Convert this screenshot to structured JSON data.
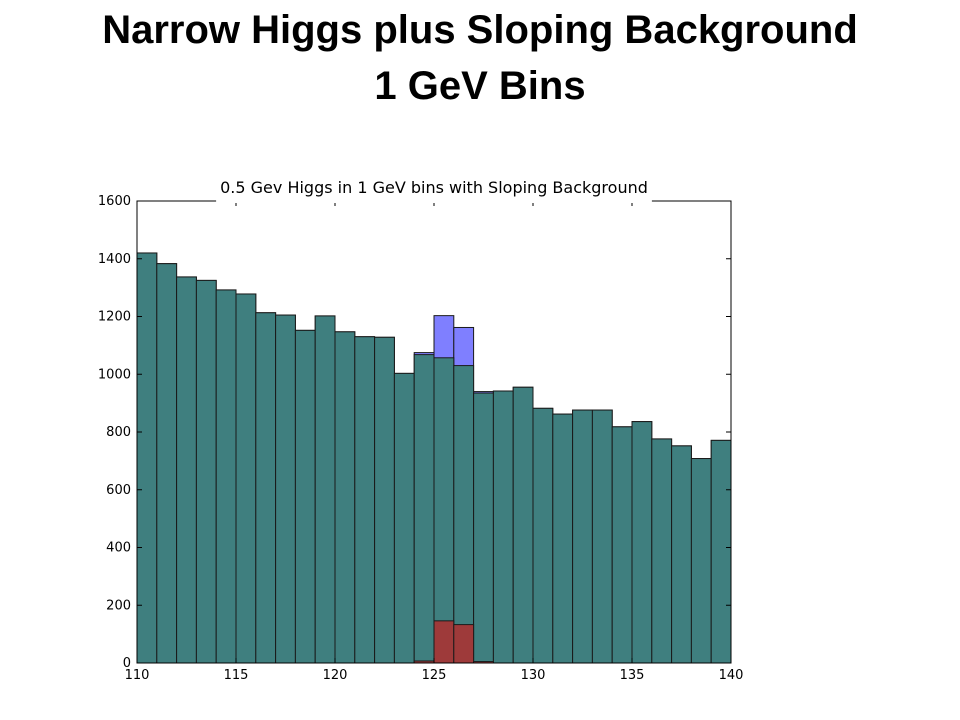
{
  "slide": {
    "title_line1": "Narrow Higgs plus Sloping Background",
    "title_line2": "1 GeV Bins"
  },
  "chart_data": {
    "type": "bar",
    "title": "0.5 Gev Higgs in 1 GeV bins with Sloping Background",
    "xlabel": "",
    "ylabel": "",
    "xlim": [
      110,
      140
    ],
    "ylim": [
      0,
      1600
    ],
    "grid": false,
    "bin_width": 1,
    "x_bin_starts": [
      110,
      111,
      112,
      113,
      114,
      115,
      116,
      117,
      118,
      119,
      120,
      121,
      122,
      123,
      124,
      125,
      126,
      127,
      128,
      129,
      130,
      131,
      132,
      133,
      134,
      135,
      136,
      137,
      138,
      139
    ],
    "x_ticks": [
      110,
      115,
      120,
      125,
      130,
      135,
      140
    ],
    "y_ticks": [
      0,
      200,
      400,
      600,
      800,
      1000,
      1200,
      1400,
      1600
    ],
    "series": [
      {
        "values": [
          1420,
          1383,
          1337,
          1325,
          1292,
          1278,
          1213,
          1205,
          1152,
          1202,
          1147,
          1130,
          1128,
          1003,
          1075,
          1203,
          1162,
          940,
          942,
          955,
          882,
          862,
          876,
          876,
          818,
          836,
          776,
          752,
          708,
          771
        ],
        "color": "#7f7fff"
      },
      {
        "values": [
          1420,
          1383,
          1337,
          1325,
          1292,
          1278,
          1213,
          1205,
          1152,
          1202,
          1147,
          1130,
          1128,
          1003,
          1068,
          1057,
          1030,
          935,
          942,
          955,
          882,
          862,
          876,
          876,
          818,
          836,
          776,
          752,
          708,
          771
        ],
        "color": "#3f7f7f"
      },
      {
        "values": [
          0,
          0,
          0,
          0,
          0,
          0,
          0,
          0,
          0,
          0,
          0,
          0,
          0,
          0,
          7,
          146,
          133,
          5,
          0,
          0,
          0,
          0,
          0,
          0,
          0,
          0,
          0,
          0,
          0,
          0
        ],
        "color": "#9e3a3a"
      }
    ]
  }
}
